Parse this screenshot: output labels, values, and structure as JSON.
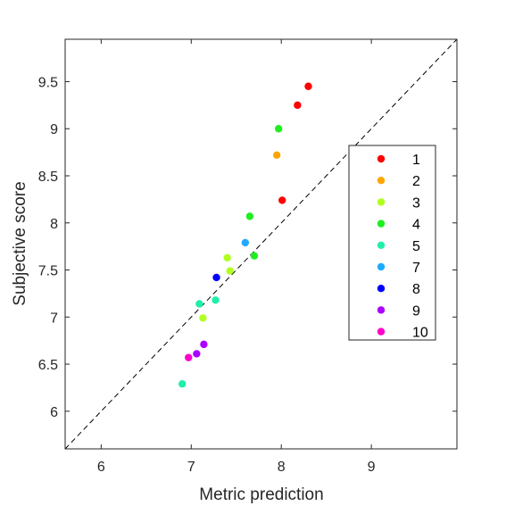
{
  "chart_data": {
    "type": "scatter",
    "title": "",
    "xlabel": "Metric prediction",
    "ylabel": "Subjective score",
    "xlim": [
      5.6,
      9.95
    ],
    "ylim": [
      5.6,
      9.95
    ],
    "xticks": [
      "6",
      "7",
      "8",
      "9"
    ],
    "yticks": [
      "6",
      "6.5",
      "7",
      "7.5",
      "8",
      "8.5",
      "9",
      "9.5"
    ],
    "grid": false,
    "reference_line": {
      "style": "dashed",
      "slope": 1,
      "intercept": 0
    },
    "legend": {
      "placement": "right"
    },
    "series": [
      {
        "name": "1",
        "color": "#ff0000",
        "points": [
          [
            8.3,
            9.45
          ],
          [
            8.18,
            9.25
          ],
          [
            8.01,
            8.24
          ]
        ]
      },
      {
        "name": "2",
        "color": "#ffa500",
        "points": [
          [
            7.95,
            8.72
          ]
        ]
      },
      {
        "name": "3",
        "color": "#b0ff1f",
        "points": [
          [
            7.4,
            7.63
          ],
          [
            7.43,
            7.49
          ],
          [
            7.13,
            6.99
          ]
        ]
      },
      {
        "name": "4",
        "color": "#1fee1f",
        "points": [
          [
            7.97,
            9.0
          ],
          [
            7.65,
            8.07
          ],
          [
            7.7,
            7.65
          ]
        ]
      },
      {
        "name": "5",
        "color": "#1fefaa",
        "points": [
          [
            7.27,
            7.18
          ],
          [
            7.09,
            7.14
          ],
          [
            6.9,
            6.29
          ]
        ]
      },
      {
        "name": "7",
        "color": "#1faaff",
        "points": [
          [
            7.6,
            7.79
          ]
        ]
      },
      {
        "name": "8",
        "color": "#0000ff",
        "points": [
          [
            7.28,
            7.42
          ]
        ]
      },
      {
        "name": "9",
        "color": "#aa00ff",
        "points": [
          [
            7.14,
            6.71
          ],
          [
            7.06,
            6.61
          ]
        ]
      },
      {
        "name": "10",
        "color": "#ff00cc",
        "points": [
          [
            6.97,
            6.57
          ]
        ]
      }
    ]
  }
}
